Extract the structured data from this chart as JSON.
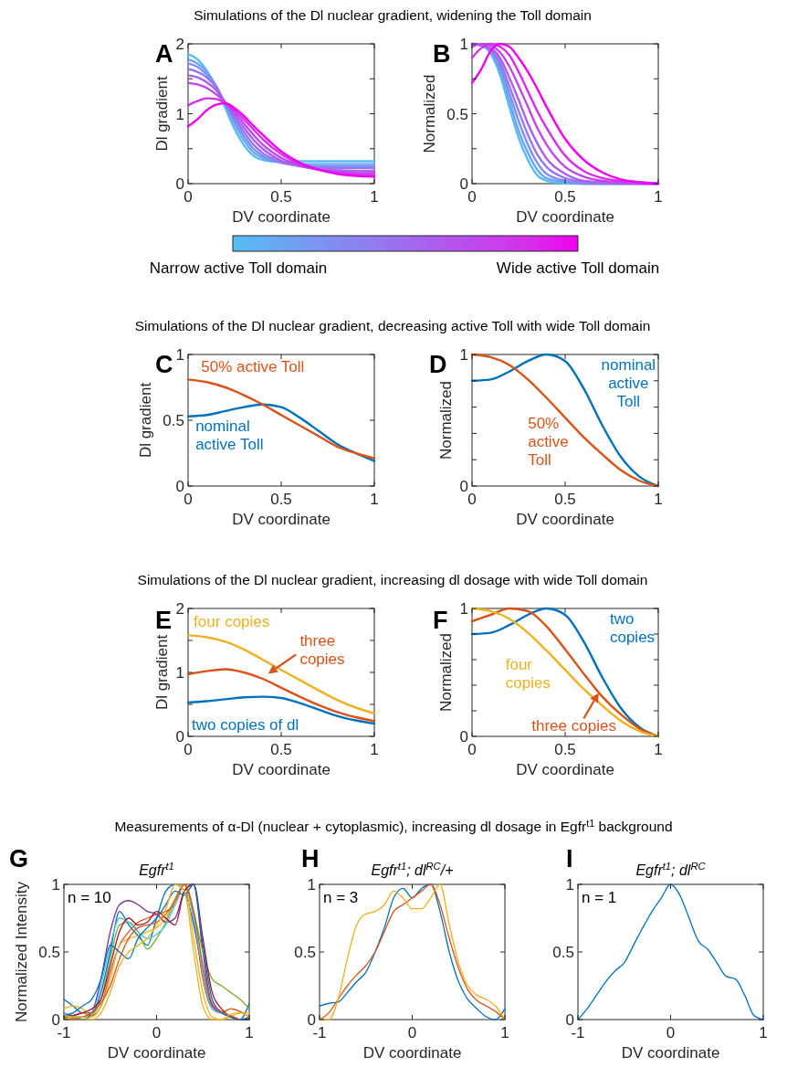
{
  "chart_data": [
    {
      "type": "line",
      "title": "Simulations of the Dl nuclear gradient, widening the Toll domain",
      "annotations": [
        "A",
        "Narrow active Toll domain",
        "Wide active Toll domain"
      ],
      "xlabel": "DV coordinate",
      "ylabel": "Dl gradient",
      "x": [
        0,
        0.05,
        0.1,
        0.15,
        0.2,
        0.25,
        0.3,
        0.35,
        0.4,
        0.5,
        0.6,
        0.7,
        0.8,
        0.9,
        1
      ],
      "xlim": [
        0,
        1
      ],
      "xticks": [
        0,
        0.5,
        1
      ],
      "ylim": [
        0,
        2
      ],
      "yticks": [
        0,
        {
          "value": 0.5,
          "label": null
        },
        1,
        {
          "value": 1.5,
          "label": null
        },
        2
      ],
      "series": [
        {
          "color": "#55bdf5",
          "values": [
            1.85,
            1.78,
            1.62,
            1.38,
            1.08,
            0.78,
            0.55,
            0.4,
            0.34,
            0.31,
            0.32,
            0.32,
            0.32,
            0.32,
            0.32
          ]
        },
        {
          "color": "#6aa6f3",
          "values": [
            1.78,
            1.72,
            1.6,
            1.4,
            1.12,
            0.85,
            0.62,
            0.45,
            0.37,
            0.3,
            0.28,
            0.28,
            0.28,
            0.28,
            0.28
          ]
        },
        {
          "color": "#808ef1",
          "values": [
            1.72,
            1.67,
            1.56,
            1.4,
            1.14,
            0.9,
            0.68,
            0.5,
            0.4,
            0.3,
            0.26,
            0.25,
            0.25,
            0.25,
            0.25
          ]
        },
        {
          "color": "#9677ef",
          "values": [
            1.64,
            1.6,
            1.52,
            1.38,
            1.15,
            0.94,
            0.74,
            0.56,
            0.44,
            0.31,
            0.25,
            0.23,
            0.22,
            0.22,
            0.22
          ]
        },
        {
          "color": "#ab5fee",
          "values": [
            1.55,
            1.52,
            1.45,
            1.34,
            1.16,
            0.98,
            0.8,
            0.63,
            0.5,
            0.33,
            0.25,
            0.21,
            0.19,
            0.18,
            0.18
          ]
        },
        {
          "color": "#c147ec",
          "values": [
            1.44,
            1.42,
            1.37,
            1.28,
            1.16,
            1.02,
            0.86,
            0.7,
            0.56,
            0.37,
            0.26,
            0.2,
            0.17,
            0.15,
            0.15
          ]
        },
        {
          "color": "#d62fea",
          "values": [
            1.12,
            1.18,
            1.22,
            1.21,
            1.15,
            1.05,
            0.92,
            0.78,
            0.64,
            0.42,
            0.28,
            0.2,
            0.15,
            0.13,
            0.12
          ]
        },
        {
          "color": "#f000f0",
          "values": [
            0.82,
            0.92,
            1.05,
            1.13,
            1.15,
            1.08,
            0.97,
            0.83,
            0.7,
            0.46,
            0.3,
            0.2,
            0.14,
            0.11,
            0.1
          ]
        }
      ]
    },
    {
      "type": "line",
      "annotations": [
        "B"
      ],
      "xlabel": "DV coordinate",
      "ylabel": "Normalized",
      "x": [
        0,
        0.05,
        0.1,
        0.15,
        0.2,
        0.25,
        0.3,
        0.35,
        0.4,
        0.5,
        0.6,
        0.7,
        0.8,
        0.9,
        1
      ],
      "xlim": [
        0,
        1
      ],
      "xticks": [
        0,
        0.5,
        1
      ],
      "ylim": [
        0,
        1
      ],
      "yticks": [
        0,
        {
          "value": 0.25,
          "label": null
        },
        0.5,
        {
          "value": 0.75,
          "label": null
        },
        1
      ],
      "series": [
        {
          "color": "#55bdf5",
          "values": [
            1,
            0.99,
            0.93,
            0.78,
            0.55,
            0.33,
            0.17,
            0.06,
            0.02,
            0,
            0,
            0,
            0,
            null,
            null
          ]
        },
        {
          "color": "#6aa6f3",
          "values": [
            1,
            0.99,
            0.94,
            0.81,
            0.6,
            0.38,
            0.22,
            0.1,
            0.04,
            0.01,
            0,
            0,
            0,
            0,
            0
          ]
        },
        {
          "color": "#808ef1",
          "values": [
            1,
            0.99,
            0.95,
            0.84,
            0.65,
            0.45,
            0.28,
            0.15,
            0.07,
            0.02,
            0,
            0,
            0,
            0,
            0
          ]
        },
        {
          "color": "#9677ef",
          "values": [
            1,
            0.99,
            0.96,
            0.87,
            0.7,
            0.52,
            0.35,
            0.21,
            0.12,
            0.04,
            0.01,
            0,
            0,
            0,
            0
          ]
        },
        {
          "color": "#ab5fee",
          "values": [
            1,
            0.99,
            0.97,
            0.9,
            0.76,
            0.6,
            0.43,
            0.29,
            0.18,
            0.07,
            0.02,
            0.01,
            0,
            0,
            0
          ]
        },
        {
          "color": "#c147ec",
          "values": [
            0.98,
            1,
            0.99,
            0.94,
            0.84,
            0.7,
            0.55,
            0.4,
            0.28,
            0.12,
            0.05,
            0.02,
            0.01,
            0,
            0
          ]
        },
        {
          "color": "#d62fea",
          "values": [
            0.9,
            0.97,
            1,
            0.98,
            0.92,
            0.8,
            0.66,
            0.52,
            0.4,
            0.2,
            0.09,
            0.04,
            0.02,
            0.01,
            0
          ]
        },
        {
          "color": "#f000f0",
          "values": [
            0.72,
            0.82,
            0.95,
            1,
            0.98,
            0.9,
            0.8,
            0.68,
            0.55,
            0.32,
            0.17,
            0.08,
            0.03,
            0.01,
            0
          ]
        }
      ]
    },
    {
      "type": "line",
      "title": "Simulations of the Dl nuclear gradient, decreasing active Toll with wide Toll domain",
      "annotations": [
        "C"
      ],
      "xlabel": "DV coordinate",
      "ylabel": "Dl gradient",
      "x": [
        0,
        0.1,
        0.2,
        0.3,
        0.4,
        0.5,
        0.6,
        0.7,
        0.8,
        0.9,
        1
      ],
      "xlim": [
        0,
        1
      ],
      "xticks": [
        0,
        0.5,
        1
      ],
      "ylim": [
        0,
        1
      ],
      "yticks": [
        0,
        0.5,
        1
      ],
      "series": [
        {
          "name": "nominal active Toll",
          "color": "#0072bd",
          "values": [
            0.53,
            0.54,
            0.57,
            0.6,
            0.62,
            0.6,
            0.52,
            0.42,
            0.32,
            0.25,
            0.19
          ]
        },
        {
          "name": "50% active Toll",
          "color": "#d95319",
          "values": [
            0.81,
            0.79,
            0.75,
            0.69,
            0.62,
            0.54,
            0.46,
            0.38,
            0.3,
            0.25,
            0.21
          ]
        }
      ]
    },
    {
      "type": "line",
      "annotations": [
        "D"
      ],
      "xlabel": "DV coordinate",
      "ylabel": "Normalized",
      "x": [
        0,
        0.1,
        0.2,
        0.3,
        0.4,
        0.5,
        0.6,
        0.7,
        0.8,
        0.9,
        1
      ],
      "xlim": [
        0,
        1
      ],
      "xticks": [
        0,
        0.5,
        1
      ],
      "ylim": [
        0,
        1
      ],
      "yticks": [
        0,
        {
          "value": 0.2,
          "label": null
        },
        {
          "value": 0.4,
          "label": null
        },
        {
          "value": 0.6,
          "label": null
        },
        {
          "value": 0.8,
          "label": null
        },
        1
      ],
      "series": [
        {
          "name": "nominal active Toll",
          "color": "#0072bd",
          "values": [
            0.8,
            0.81,
            0.87,
            0.95,
            1,
            0.95,
            0.74,
            0.46,
            0.22,
            0.07,
            0
          ]
        },
        {
          "name": "50% active Toll",
          "color": "#d95319",
          "values": [
            1,
            0.98,
            0.92,
            0.81,
            0.67,
            0.52,
            0.37,
            0.24,
            0.12,
            0.04,
            0
          ]
        }
      ]
    },
    {
      "type": "line",
      "title": "Simulations of the Dl nuclear gradient, increasing dl dosage with wide Toll domain",
      "annotations": [
        "E"
      ],
      "xlabel": "DV coordinate",
      "ylabel": "Dl gradient",
      "x": [
        0,
        0.1,
        0.2,
        0.3,
        0.4,
        0.5,
        0.6,
        0.7,
        0.8,
        0.9,
        1
      ],
      "xlim": [
        0,
        1
      ],
      "xticks": [
        0,
        0.5,
        1
      ],
      "ylim": [
        0,
        2
      ],
      "yticks": [
        0,
        {
          "value": 0.5,
          "label": null
        },
        1,
        {
          "value": 1.5,
          "label": null
        },
        2
      ],
      "series": [
        {
          "name": "four copies",
          "color": "#edb120",
          "values": [
            1.58,
            1.55,
            1.48,
            1.36,
            1.2,
            1.04,
            0.88,
            0.72,
            0.57,
            0.45,
            0.36
          ]
        },
        {
          "name": "three copies",
          "color": "#d95319",
          "values": [
            0.97,
            1.02,
            1.05,
            1.0,
            0.9,
            0.76,
            0.62,
            0.49,
            0.38,
            0.3,
            0.24
          ]
        },
        {
          "name": "two copies of dl",
          "color": "#0072bd",
          "values": [
            0.53,
            0.55,
            0.58,
            0.61,
            0.62,
            0.6,
            0.52,
            0.42,
            0.32,
            0.25,
            0.2
          ]
        }
      ]
    },
    {
      "type": "line",
      "annotations": [
        "F"
      ],
      "xlabel": "DV coordinate",
      "ylabel": "Normalized",
      "x": [
        0,
        0.1,
        0.2,
        0.3,
        0.4,
        0.5,
        0.6,
        0.7,
        0.8,
        0.9,
        1
      ],
      "xlim": [
        0,
        1
      ],
      "xticks": [
        0,
        0.5,
        1
      ],
      "ylim": [
        0,
        1
      ],
      "yticks": [
        0,
        {
          "value": 0.2,
          "label": null
        },
        {
          "value": 0.4,
          "label": null
        },
        {
          "value": 0.6,
          "label": null
        },
        {
          "value": 0.8,
          "label": null
        },
        1
      ],
      "series": [
        {
          "name": "two copies",
          "color": "#0072bd",
          "values": [
            0.8,
            0.81,
            0.87,
            0.95,
            1,
            0.95,
            0.74,
            0.46,
            0.22,
            0.07,
            0
          ]
        },
        {
          "name": "three copies",
          "color": "#d95319",
          "values": [
            0.9,
            0.95,
            1,
            0.98,
            0.86,
            0.68,
            0.49,
            0.31,
            0.17,
            0.06,
            0
          ]
        },
        {
          "name": "four copies",
          "color": "#edb120",
          "values": [
            1,
            0.98,
            0.92,
            0.81,
            0.67,
            0.52,
            0.37,
            0.24,
            0.12,
            0.04,
            0
          ]
        }
      ]
    },
    {
      "type": "line",
      "title": "Measurements of α-Dl (nuclear + cytoplasmic), increasing dl dosage in Egfr$^{t1}$ background",
      "subtitle": "Egfr$^{t1}$",
      "annotations": [
        "G",
        "n = 10"
      ],
      "xlabel": "DV coordinate",
      "ylabel": "Normalized Intensity",
      "x": [
        -1,
        -0.9,
        -0.8,
        -0.7,
        -0.6,
        -0.5,
        -0.4,
        -0.3,
        -0.2,
        -0.1,
        0,
        0.1,
        0.2,
        0.3,
        0.4,
        0.5,
        0.6,
        0.7,
        0.8,
        0.9,
        1
      ],
      "xlim": [
        -1,
        1
      ],
      "xticks": [
        -1,
        0,
        1
      ],
      "ylim": [
        0,
        1
      ],
      "yticks": [
        0,
        0.5,
        1
      ],
      "series": [
        {
          "color": "#0072bd",
          "values": [
            0.15,
            0.1,
            0.05,
            0.05,
            0.2,
            0.5,
            0.8,
            0.7,
            0.62,
            0.55,
            0.75,
            0.95,
            1,
            0.95,
            0.7,
            0.35,
            0.1,
            0.05,
            0.02,
            0,
            0.12
          ]
        },
        {
          "color": "#d95319",
          "values": [
            0.02,
            0.03,
            0.05,
            0.03,
            0.1,
            0.35,
            0.55,
            0.65,
            0.72,
            0.75,
            0.78,
            0.8,
            0.85,
            1,
            0.75,
            0.3,
            0.08,
            0.05,
            0.08,
            0.06,
            0.02
          ]
        },
        {
          "color": "#edb120",
          "values": [
            0.08,
            0.1,
            0.08,
            0.02,
            0.1,
            0.3,
            0.55,
            0.6,
            0.62,
            0.65,
            0.68,
            0.75,
            0.9,
            1,
            0.6,
            0.2,
            0.02,
            0,
            0.02,
            0.05,
            0.05
          ]
        },
        {
          "color": "#7e2f8e",
          "values": [
            0.05,
            0.02,
            0,
            0.05,
            0.3,
            0.65,
            0.85,
            0.88,
            0.85,
            0.8,
            0.78,
            0.72,
            0.75,
            0.95,
            1,
            0.5,
            0.1,
            0.05,
            0.02,
            0,
            0.02
          ]
        },
        {
          "color": "#77ac30",
          "values": [
            0.02,
            0.01,
            0,
            0.03,
            0.15,
            0.45,
            0.7,
            0.72,
            0.65,
            0.52,
            0.6,
            0.72,
            0.88,
            1,
            0.8,
            0.5,
            0.3,
            0.25,
            0.2,
            0.15,
            0.08
          ]
        },
        {
          "color": "#4dbeee",
          "values": [
            0.05,
            0.03,
            0.02,
            0.05,
            0.25,
            0.55,
            0.75,
            0.72,
            0.65,
            0.6,
            0.63,
            0.7,
            0.85,
            1,
            0.75,
            0.35,
            0.08,
            0.05,
            0.02,
            0,
            0
          ]
        },
        {
          "color": "#a2142f",
          "values": [
            0.02,
            0.03,
            0.05,
            0.08,
            0.15,
            0.4,
            0.65,
            0.75,
            0.7,
            0.72,
            0.8,
            0.75,
            0.7,
            0.95,
            1,
            0.6,
            0.2,
            0.08,
            0.02,
            0,
            0
          ]
        },
        {
          "color": "#0072bd",
          "values": [
            0.03,
            0.05,
            0.1,
            0.15,
            0.3,
            0.55,
            0.5,
            0.45,
            0.6,
            0.68,
            0.75,
            0.85,
            0.95,
            0.92,
            1,
            0.55,
            0.15,
            0.05,
            0.02,
            0,
            0
          ]
        },
        {
          "color": "#d95319",
          "values": [
            0.01,
            0,
            0.02,
            0.05,
            0.12,
            0.25,
            0.45,
            0.6,
            0.68,
            0.7,
            0.72,
            0.78,
            0.88,
            1,
            0.8,
            0.4,
            0.12,
            0.06,
            0.03,
            0,
            null
          ]
        },
        {
          "color": "#edb120",
          "values": [
            0.03,
            0.02,
            0.02,
            0,
            0.05,
            0.2,
            0.4,
            0.5,
            0.55,
            0.6,
            0.7,
            0.82,
            1,
            0.95,
            0.5,
            0.1,
            0,
            0,
            0.04,
            0.05,
            0.02
          ]
        }
      ]
    },
    {
      "type": "line",
      "subtitle": "Egfr$^{t1}$; dl$^{RC}$/+",
      "annotations": [
        "H",
        "n = 3"
      ],
      "xlabel": "DV coordinate",
      "x": [
        -1,
        -0.9,
        -0.8,
        -0.7,
        -0.6,
        -0.5,
        -0.4,
        -0.3,
        -0.2,
        -0.1,
        0,
        0.1,
        0.2,
        0.3,
        0.4,
        0.5,
        0.6,
        0.7,
        0.8,
        0.9,
        1
      ],
      "xlim": [
        -1,
        1
      ],
      "xticks": [
        -1,
        0,
        1
      ],
      "ylim": [
        0,
        1
      ],
      "yticks": [
        0,
        0.5,
        1
      ],
      "series": [
        {
          "color": "#0072bd",
          "values": [
            0.1,
            0.12,
            0.13,
            0.2,
            0.28,
            0.35,
            0.5,
            0.68,
            0.9,
            0.97,
            0.9,
            0.97,
            1,
            0.8,
            0.5,
            0.28,
            0.15,
            0.08,
            0.02,
            0,
            0.08
          ]
        },
        {
          "color": "#d95319",
          "values": [
            0,
            0.05,
            0.15,
            0.25,
            0.33,
            0.4,
            0.5,
            0.65,
            0.8,
            0.85,
            0.9,
            0.95,
            1,
            0.85,
            0.6,
            0.38,
            0.22,
            0.14,
            0.1,
            0.06,
            0
          ]
        },
        {
          "color": "#edb120",
          "values": [
            0,
            0,
            0.15,
            0.45,
            0.7,
            0.78,
            0.8,
            0.85,
            0.95,
            0.9,
            0.82,
            0.82,
            0.9,
            1,
            0.7,
            0.42,
            0.25,
            0.18,
            0.15,
            0.1,
            0
          ]
        }
      ]
    },
    {
      "type": "line",
      "subtitle": "Egfr$^{t1}$; dl$^{RC}$",
      "annotations": [
        "I",
        "n = 1"
      ],
      "xlabel": "DV coordinate",
      "x": [
        -1,
        -0.9,
        -0.8,
        -0.7,
        -0.6,
        -0.5,
        -0.4,
        -0.3,
        -0.2,
        -0.1,
        0,
        0.1,
        0.2,
        0.3,
        0.4,
        0.5,
        0.6,
        0.7,
        0.8,
        0.9,
        1
      ],
      "xlim": [
        -1,
        1
      ],
      "xticks": [
        -1,
        0,
        1
      ],
      "ylim": [
        0,
        1
      ],
      "yticks": [
        0,
        0.5,
        1
      ],
      "series": [
        {
          "color": "#0072bd",
          "values": [
            0,
            0.08,
            0.18,
            0.28,
            0.36,
            0.42,
            0.55,
            0.68,
            0.8,
            0.9,
            1,
            0.92,
            0.75,
            0.58,
            0.52,
            0.42,
            0.32,
            0.3,
            0.18,
            0.03,
            0
          ]
        }
      ]
    }
  ]
}
